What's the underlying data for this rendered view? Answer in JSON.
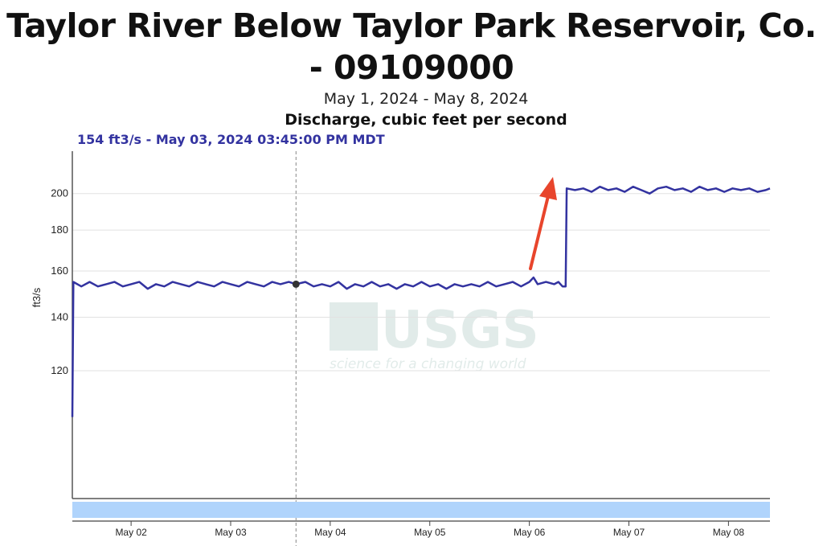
{
  "title": "Taylor River Below Taylor Park Reservoir, Co. - 09109000",
  "date_range": "May 1, 2024 - May 8, 2024",
  "parameter": "Discharge, cubic feet per second",
  "tooltip": "154 ft3/s - May 03, 2024 03:45:00 PM MDT",
  "watermark": {
    "logo": "USGS",
    "tagline": "science for a changing world"
  },
  "chart_data": {
    "type": "line",
    "title": "Discharge, cubic feet per second",
    "ylabel": "ft3/s",
    "xlabel": "",
    "y_scale": "log",
    "ylim": [
      83,
      226
    ],
    "xlim": [
      "2024-05-01T09:50",
      "2024-05-08T10:00"
    ],
    "y_ticks": [
      120,
      140,
      160,
      180,
      200
    ],
    "x_ticks": [
      {
        "t": "2024-05-02T00:00",
        "label": "May 02"
      },
      {
        "t": "2024-05-03T00:00",
        "label": "May 03"
      },
      {
        "t": "2024-05-04T00:00",
        "label": "May 04"
      },
      {
        "t": "2024-05-05T00:00",
        "label": "May 05"
      },
      {
        "t": "2024-05-06T00:00",
        "label": "May 06"
      },
      {
        "t": "2024-05-07T00:00",
        "label": "May 07"
      },
      {
        "t": "2024-05-08T00:00",
        "label": "May 08"
      }
    ],
    "grid": true,
    "line_color": "#3333a0",
    "cursor": {
      "t": "2024-05-03T15:45",
      "value": 154
    },
    "annotation": {
      "type": "arrow",
      "color": "#e8452c"
    },
    "navigator_color": "#b0d4fc",
    "series": [
      {
        "points": [
          [
            "2024-05-01T09:50",
            105
          ],
          [
            "2024-05-01T10:05",
            155
          ],
          [
            "2024-05-01T12:00",
            153
          ],
          [
            "2024-05-01T14:00",
            155
          ],
          [
            "2024-05-01T16:00",
            153
          ],
          [
            "2024-05-01T18:00",
            154
          ],
          [
            "2024-05-01T20:00",
            155
          ],
          [
            "2024-05-01T22:00",
            153
          ],
          [
            "2024-05-02T00:00",
            154
          ],
          [
            "2024-05-02T02:00",
            155
          ],
          [
            "2024-05-02T04:00",
            152
          ],
          [
            "2024-05-02T06:00",
            154
          ],
          [
            "2024-05-02T08:00",
            153
          ],
          [
            "2024-05-02T10:00",
            155
          ],
          [
            "2024-05-02T12:00",
            154
          ],
          [
            "2024-05-02T14:00",
            153
          ],
          [
            "2024-05-02T16:00",
            155
          ],
          [
            "2024-05-02T18:00",
            154
          ],
          [
            "2024-05-02T20:00",
            153
          ],
          [
            "2024-05-02T22:00",
            155
          ],
          [
            "2024-05-03T00:00",
            154
          ],
          [
            "2024-05-03T02:00",
            153
          ],
          [
            "2024-05-03T04:00",
            155
          ],
          [
            "2024-05-03T06:00",
            154
          ],
          [
            "2024-05-03T08:00",
            153
          ],
          [
            "2024-05-03T10:00",
            155
          ],
          [
            "2024-05-03T12:00",
            154
          ],
          [
            "2024-05-03T14:00",
            155
          ],
          [
            "2024-05-03T15:45",
            154
          ],
          [
            "2024-05-03T18:00",
            155
          ],
          [
            "2024-05-03T20:00",
            153
          ],
          [
            "2024-05-03T22:00",
            154
          ],
          [
            "2024-05-04T00:00",
            153
          ],
          [
            "2024-05-04T02:00",
            155
          ],
          [
            "2024-05-04T04:00",
            152
          ],
          [
            "2024-05-04T06:00",
            154
          ],
          [
            "2024-05-04T08:00",
            153
          ],
          [
            "2024-05-04T10:00",
            155
          ],
          [
            "2024-05-04T12:00",
            153
          ],
          [
            "2024-05-04T14:00",
            154
          ],
          [
            "2024-05-04T16:00",
            152
          ],
          [
            "2024-05-04T18:00",
            154
          ],
          [
            "2024-05-04T20:00",
            153
          ],
          [
            "2024-05-04T22:00",
            155
          ],
          [
            "2024-05-05T00:00",
            153
          ],
          [
            "2024-05-05T02:00",
            154
          ],
          [
            "2024-05-05T04:00",
            152
          ],
          [
            "2024-05-05T06:00",
            154
          ],
          [
            "2024-05-05T08:00",
            153
          ],
          [
            "2024-05-05T10:00",
            154
          ],
          [
            "2024-05-05T12:00",
            153
          ],
          [
            "2024-05-05T14:00",
            155
          ],
          [
            "2024-05-05T16:00",
            153
          ],
          [
            "2024-05-05T18:00",
            154
          ],
          [
            "2024-05-05T20:00",
            155
          ],
          [
            "2024-05-05T22:00",
            153
          ],
          [
            "2024-05-06T00:00",
            155
          ],
          [
            "2024-05-06T01:00",
            157
          ],
          [
            "2024-05-06T02:00",
            154
          ],
          [
            "2024-05-06T04:00",
            155
          ],
          [
            "2024-05-06T06:00",
            154
          ],
          [
            "2024-05-06T07:00",
            155
          ],
          [
            "2024-05-06T08:00",
            153
          ],
          [
            "2024-05-06T08:45",
            153
          ],
          [
            "2024-05-06T09:00",
            203
          ],
          [
            "2024-05-06T11:00",
            202
          ],
          [
            "2024-05-06T13:00",
            203
          ],
          [
            "2024-05-06T15:00",
            201
          ],
          [
            "2024-05-06T17:00",
            204
          ],
          [
            "2024-05-06T19:00",
            202
          ],
          [
            "2024-05-06T21:00",
            203
          ],
          [
            "2024-05-06T23:00",
            201
          ],
          [
            "2024-05-07T01:00",
            204
          ],
          [
            "2024-05-07T03:00",
            202
          ],
          [
            "2024-05-07T05:00",
            200
          ],
          [
            "2024-05-07T07:00",
            203
          ],
          [
            "2024-05-07T09:00",
            204
          ],
          [
            "2024-05-07T11:00",
            202
          ],
          [
            "2024-05-07T13:00",
            203
          ],
          [
            "2024-05-07T15:00",
            201
          ],
          [
            "2024-05-07T17:00",
            204
          ],
          [
            "2024-05-07T19:00",
            202
          ],
          [
            "2024-05-07T21:00",
            203
          ],
          [
            "2024-05-07T23:00",
            201
          ],
          [
            "2024-05-08T01:00",
            203
          ],
          [
            "2024-05-08T03:00",
            202
          ],
          [
            "2024-05-08T05:00",
            203
          ],
          [
            "2024-05-08T07:00",
            201
          ],
          [
            "2024-05-08T09:00",
            202
          ],
          [
            "2024-05-08T10:00",
            203
          ]
        ]
      }
    ]
  }
}
